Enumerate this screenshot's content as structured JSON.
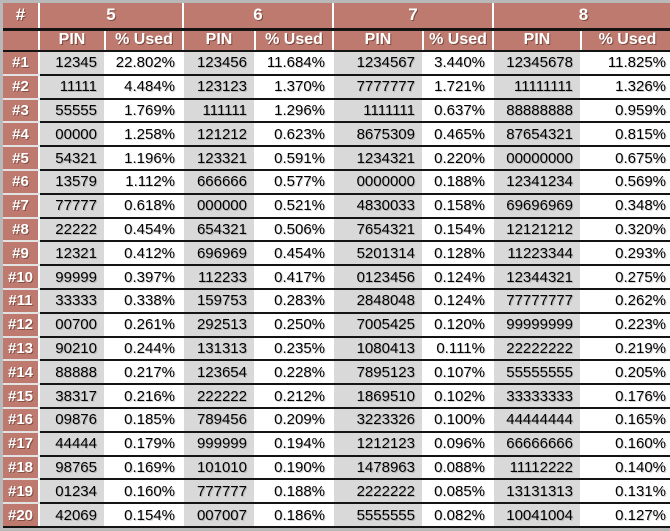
{
  "colors": {
    "header_bg": "#BE7A6E",
    "header_text": "#FFFFFF",
    "pin_cell_bg": "#D9D9D9",
    "used_cell_bg": "#FFFFFF",
    "grid_dark": "#141414",
    "grid_light": "#FFFFFF",
    "frame": "#B9B9B9",
    "data_text": "#000000"
  },
  "chart_data": {
    "type": "table",
    "corner_label": "#",
    "groups": [
      "5",
      "6",
      "7",
      "8"
    ],
    "sub_headers": [
      "PIN",
      "% Used"
    ],
    "rows": [
      {
        "rank": "#1",
        "cells": [
          "12345",
          "22.802%",
          "123456",
          "11.684%",
          "1234567",
          "3.440%",
          "12345678",
          "11.825%"
        ]
      },
      {
        "rank": "#2",
        "cells": [
          "11111",
          "4.484%",
          "123123",
          "1.370%",
          "7777777",
          "1.721%",
          "11111111",
          "1.326%"
        ]
      },
      {
        "rank": "#3",
        "cells": [
          "55555",
          "1.769%",
          "111111",
          "1.296%",
          "1111111",
          "0.637%",
          "88888888",
          "0.959%"
        ]
      },
      {
        "rank": "#4",
        "cells": [
          "00000",
          "1.258%",
          "121212",
          "0.623%",
          "8675309",
          "0.465%",
          "87654321",
          "0.815%"
        ]
      },
      {
        "rank": "#5",
        "cells": [
          "54321",
          "1.196%",
          "123321",
          "0.591%",
          "1234321",
          "0.220%",
          "00000000",
          "0.675%"
        ]
      },
      {
        "rank": "#6",
        "cells": [
          "13579",
          "1.112%",
          "666666",
          "0.577%",
          "0000000",
          "0.188%",
          "12341234",
          "0.569%"
        ]
      },
      {
        "rank": "#7",
        "cells": [
          "77777",
          "0.618%",
          "000000",
          "0.521%",
          "4830033",
          "0.158%",
          "69696969",
          "0.348%"
        ]
      },
      {
        "rank": "#8",
        "cells": [
          "22222",
          "0.454%",
          "654321",
          "0.506%",
          "7654321",
          "0.154%",
          "12121212",
          "0.320%"
        ]
      },
      {
        "rank": "#9",
        "cells": [
          "12321",
          "0.412%",
          "696969",
          "0.454%",
          "5201314",
          "0.128%",
          "11223344",
          "0.293%"
        ]
      },
      {
        "rank": "#10",
        "cells": [
          "99999",
          "0.397%",
          "112233",
          "0.417%",
          "0123456",
          "0.124%",
          "12344321",
          "0.275%"
        ]
      },
      {
        "rank": "#11",
        "cells": [
          "33333",
          "0.338%",
          "159753",
          "0.283%",
          "2848048",
          "0.124%",
          "77777777",
          "0.262%"
        ]
      },
      {
        "rank": "#12",
        "cells": [
          "00700",
          "0.261%",
          "292513",
          "0.250%",
          "7005425",
          "0.120%",
          "99999999",
          "0.223%"
        ]
      },
      {
        "rank": "#13",
        "cells": [
          "90210",
          "0.244%",
          "131313",
          "0.235%",
          "1080413",
          "0.111%",
          "22222222",
          "0.219%"
        ]
      },
      {
        "rank": "#14",
        "cells": [
          "88888",
          "0.217%",
          "123654",
          "0.228%",
          "7895123",
          "0.107%",
          "55555555",
          "0.205%"
        ]
      },
      {
        "rank": "#15",
        "cells": [
          "38317",
          "0.216%",
          "222222",
          "0.212%",
          "1869510",
          "0.102%",
          "33333333",
          "0.176%"
        ]
      },
      {
        "rank": "#16",
        "cells": [
          "09876",
          "0.185%",
          "789456",
          "0.209%",
          "3223326",
          "0.100%",
          "44444444",
          "0.165%"
        ]
      },
      {
        "rank": "#17",
        "cells": [
          "44444",
          "0.179%",
          "999999",
          "0.194%",
          "1212123",
          "0.096%",
          "66666666",
          "0.160%"
        ]
      },
      {
        "rank": "#18",
        "cells": [
          "98765",
          "0.169%",
          "101010",
          "0.190%",
          "1478963",
          "0.088%",
          "11112222",
          "0.140%"
        ]
      },
      {
        "rank": "#19",
        "cells": [
          "01234",
          "0.160%",
          "777777",
          "0.188%",
          "2222222",
          "0.085%",
          "13131313",
          "0.131%"
        ]
      },
      {
        "rank": "#20",
        "cells": [
          "42069",
          "0.154%",
          "007007",
          "0.186%",
          "5555555",
          "0.082%",
          "10041004",
          "0.127%"
        ]
      }
    ]
  }
}
